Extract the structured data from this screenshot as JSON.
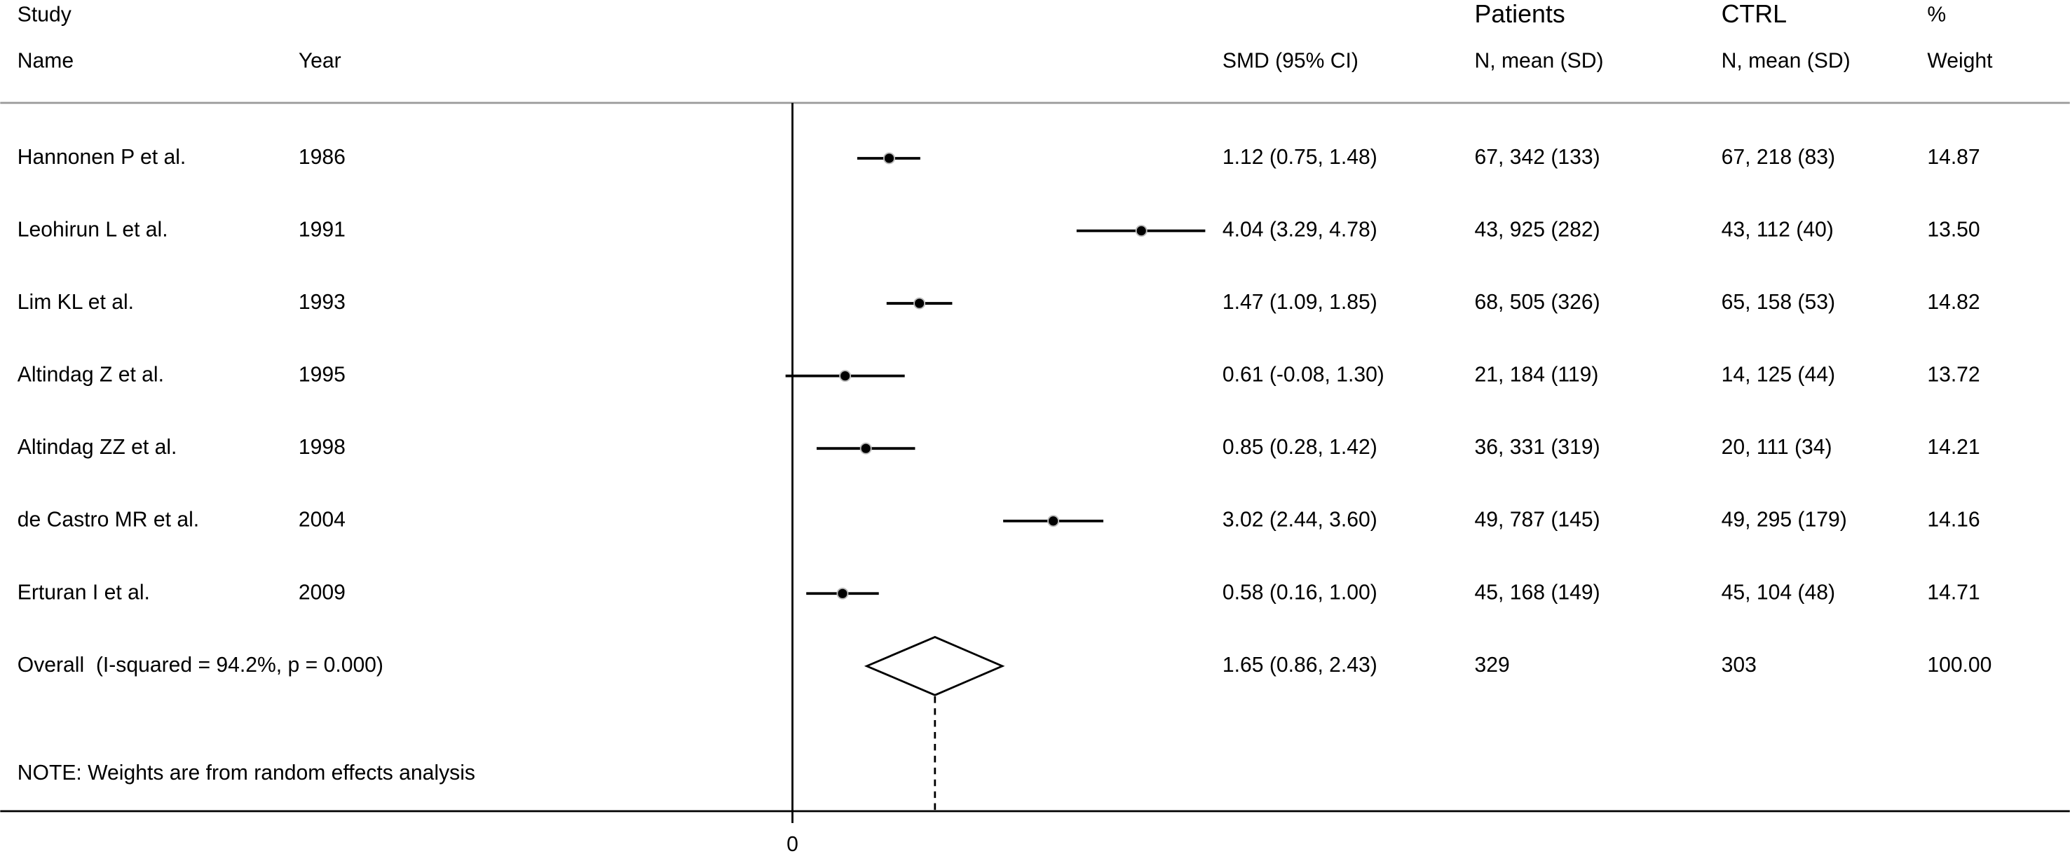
{
  "chart_data": {
    "type": "forest",
    "headers": {
      "study": "Study",
      "patients": "Patients",
      "ctrl": "CTRL",
      "pct": "%",
      "name": "Name",
      "year": "Year",
      "smd": "SMD (95% CI)",
      "patients_sub": "N, mean (SD)",
      "ctrl_sub": "N, mean (SD)",
      "weight": "Weight"
    },
    "studies": [
      "Hannonen P et al.",
      "Leohirun L et al.",
      "Lim KL et al.",
      "Altindag Z et al.",
      "Altindag ZZ et al.",
      "de Castro MR et al.",
      "Erturan I et al."
    ],
    "years": [
      1986,
      1991,
      1993,
      1995,
      1998,
      2004,
      2009
    ],
    "values": [
      1.12,
      4.04,
      1.47,
      0.61,
      0.85,
      3.02,
      0.58
    ],
    "lower": [
      0.75,
      3.29,
      1.09,
      -0.08,
      0.28,
      2.44,
      0.16
    ],
    "upper": [
      1.48,
      4.78,
      1.85,
      1.3,
      1.42,
      3.6,
      1.0
    ],
    "value_labels": [
      "1.12 (0.75, 1.48)",
      "4.04 (3.29, 4.78)",
      "1.47 (1.09, 1.85)",
      "0.61 (-0.08, 1.30)",
      "0.85 (0.28, 1.42)",
      "3.02 (2.44, 3.60)",
      "0.58 (0.16, 1.00)"
    ],
    "patients": [
      "67, 342 (133)",
      "43, 925 (282)",
      "68, 505 (326)",
      "21, 184 (119)",
      "36, 331 (319)",
      "49, 787 (145)",
      "45, 168 (149)"
    ],
    "ctrl": [
      "67, 218 (83)",
      "43, 112 (40)",
      "65, 158 (53)",
      "14, 125 (44)",
      "20, 111 (34)",
      "49, 295 (179)",
      "45, 104 (48)"
    ],
    "weights": [
      "14.87",
      "13.50",
      "14.82",
      "13.72",
      "14.21",
      "14.16",
      "14.71"
    ],
    "overall": {
      "name": "Overall  (I-squared = 94.2%, p = 0.000)",
      "value": 1.65,
      "lower": 0.86,
      "upper": 2.43,
      "value_label": "1.65 (0.86, 2.43)",
      "patients": "329",
      "ctrl": "303",
      "weight": "100.00"
    },
    "note": "NOTE: Weights are from random effects analysis",
    "xlim": [
      -0.08,
      4.78
    ],
    "xticks": [
      0
    ]
  }
}
